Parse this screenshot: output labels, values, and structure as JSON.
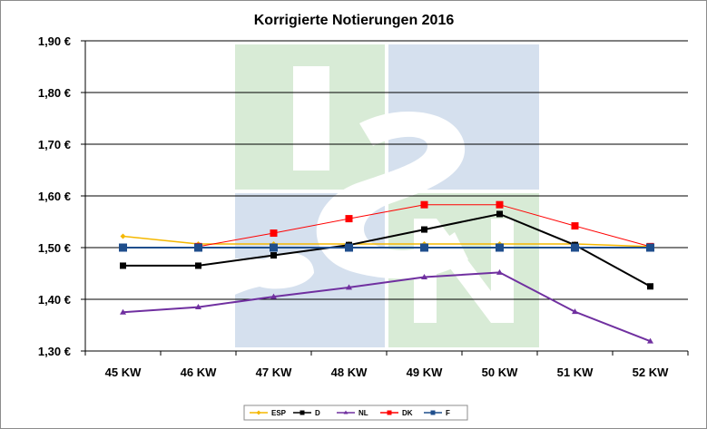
{
  "chart_data": {
    "type": "line",
    "title": "Korrigierte Notierungen 2016",
    "xlabel": "",
    "ylabel": "",
    "categories": [
      "45 KW",
      "46 KW",
      "47 KW",
      "48 KW",
      "49 KW",
      "50 KW",
      "51 KW",
      "52 KW"
    ],
    "ylim": [
      1.3,
      1.9
    ],
    "yticks": [
      1.3,
      1.4,
      1.5,
      1.6,
      1.7,
      1.8,
      1.9
    ],
    "ytick_labels": [
      "1,30 €",
      "1,40 €",
      "1,50 €",
      "1,60 €",
      "1,70 €",
      "1,80 €",
      "1,90 €"
    ],
    "grid": "horizontal",
    "legend_position": "bottom",
    "series": [
      {
        "name": "ESP",
        "color": "#f5b800",
        "marker": "diamond",
        "values": [
          1.522,
          1.507,
          1.507,
          1.507,
          1.507,
          1.507,
          1.507,
          1.502
        ]
      },
      {
        "name": "D",
        "color": "#000000",
        "marker": "square",
        "values": [
          1.465,
          1.465,
          1.485,
          1.505,
          1.535,
          1.565,
          1.505,
          1.425
        ]
      },
      {
        "name": "NL",
        "color": "#7030a0",
        "marker": "triangle",
        "values": [
          1.375,
          1.385,
          1.405,
          1.423,
          1.443,
          1.452,
          1.376,
          1.319
        ]
      },
      {
        "name": "DK",
        "color": "#ff0000",
        "marker": "square",
        "values": [
          null,
          1.502,
          1.528,
          1.556,
          1.583,
          1.583,
          1.542,
          1.502
        ]
      },
      {
        "name": "F",
        "color": "#1f4e8c",
        "marker": "square",
        "values": [
          1.5,
          1.5,
          1.5,
          1.5,
          1.5,
          1.5,
          1.5,
          1.5
        ]
      }
    ]
  },
  "watermark": {
    "text": "ISN",
    "colors": {
      "green": "#d8ebd6",
      "blue": "#d5e0ee",
      "bg": "#ebebeb"
    }
  }
}
